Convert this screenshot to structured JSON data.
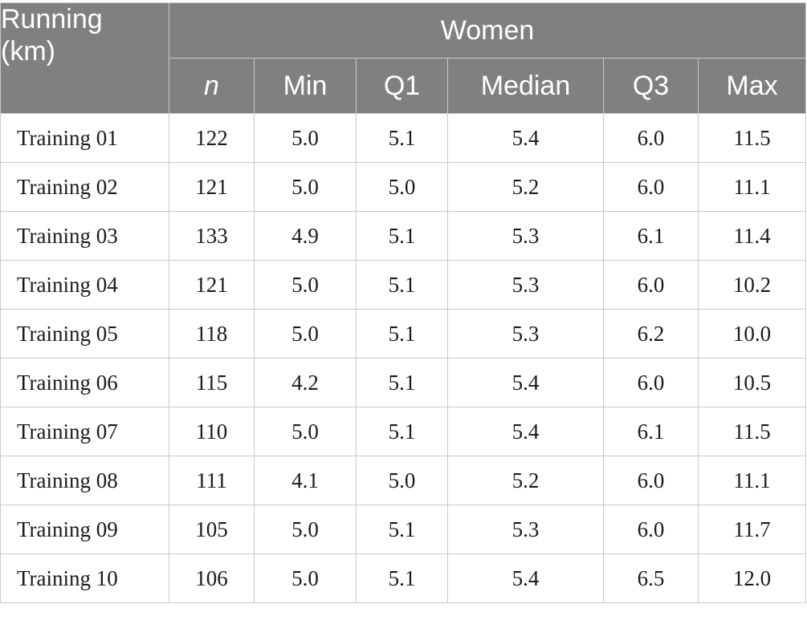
{
  "header": {
    "corner_line1": "Running",
    "corner_line2": "(km)",
    "group": "Women",
    "columns": [
      "n",
      "Min",
      "Q1",
      "Median",
      "Q3",
      "Max"
    ]
  },
  "rows": [
    {
      "label": "Training 01",
      "values": [
        "122",
        "5.0",
        "5.1",
        "5.4",
        "6.0",
        "11.5"
      ]
    },
    {
      "label": "Training 02",
      "values": [
        "121",
        "5.0",
        "5.0",
        "5.2",
        "6.0",
        "11.1"
      ]
    },
    {
      "label": "Training 03",
      "values": [
        "133",
        "4.9",
        "5.1",
        "5.3",
        "6.1",
        "11.4"
      ]
    },
    {
      "label": "Training 04",
      "values": [
        "121",
        "5.0",
        "5.1",
        "5.3",
        "6.0",
        "10.2"
      ]
    },
    {
      "label": "Training 05",
      "values": [
        "118",
        "5.0",
        "5.1",
        "5.3",
        "6.2",
        "10.0"
      ]
    },
    {
      "label": "Training 06",
      "values": [
        "115",
        "4.2",
        "5.1",
        "5.4",
        "6.0",
        "10.5"
      ]
    },
    {
      "label": "Training 07",
      "values": [
        "110",
        "5.0",
        "5.1",
        "5.4",
        "6.1",
        "11.5"
      ]
    },
    {
      "label": "Training 08",
      "values": [
        "111",
        "4.1",
        "5.0",
        "5.2",
        "6.0",
        "11.1"
      ]
    },
    {
      "label": "Training 09",
      "values": [
        "105",
        "5.0",
        "5.1",
        "5.3",
        "6.0",
        "11.7"
      ]
    },
    {
      "label": "Training 10",
      "values": [
        "106",
        "5.0",
        "5.1",
        "5.4",
        "6.5",
        "12.0"
      ]
    }
  ]
}
